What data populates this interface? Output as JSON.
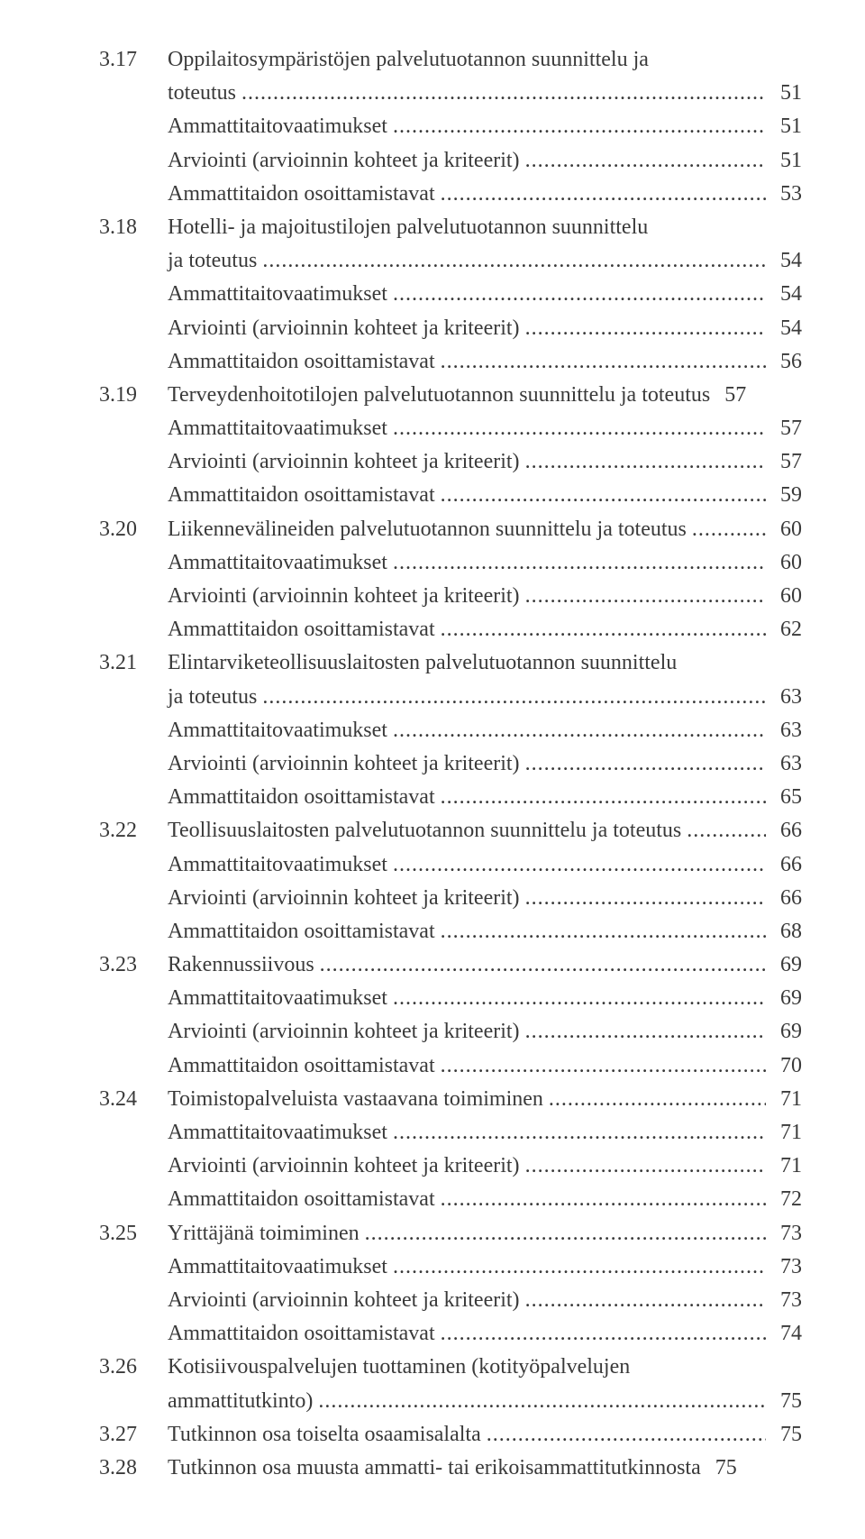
{
  "typography": {
    "font_family": "Georgia, Times New Roman, serif",
    "font_size_pt": 18,
    "text_color": "#3a3a3a",
    "background_color": "#ffffff",
    "line_height": 1.55
  },
  "toc": [
    {
      "num": "3.17",
      "title_lines": [
        "Oppilaitosympäristöjen palvelutuotannon suunnittelu ja",
        "toteutus"
      ],
      "page": 51
    },
    {
      "num": "",
      "indent": true,
      "title_lines": [
        "Ammattitaitovaatimukset"
      ],
      "page": 51
    },
    {
      "num": "",
      "indent": true,
      "title_lines": [
        "Arviointi (arvioinnin kohteet ja kriteerit)"
      ],
      "page": 51
    },
    {
      "num": "",
      "indent": true,
      "title_lines": [
        "Ammattitaidon osoittamistavat"
      ],
      "page": 53
    },
    {
      "num": "3.18",
      "title_lines": [
        "Hotelli- ja majoitustilojen palvelutuotannon suunnittelu",
        "ja toteutus"
      ],
      "page": 54
    },
    {
      "num": "",
      "indent": true,
      "title_lines": [
        "Ammattitaitovaatimukset"
      ],
      "page": 54
    },
    {
      "num": "",
      "indent": true,
      "title_lines": [
        "Arviointi (arvioinnin kohteet ja kriteerit)"
      ],
      "page": 54
    },
    {
      "num": "",
      "indent": true,
      "title_lines": [
        "Ammattitaidon osoittamistavat"
      ],
      "page": 56
    },
    {
      "num": "3.19",
      "title_lines": [
        "Terveydenhoitotilojen palvelutuotannon suunnittelu ja toteutus"
      ],
      "page": 57,
      "tight": true
    },
    {
      "num": "",
      "indent": true,
      "title_lines": [
        "Ammattitaitovaatimukset"
      ],
      "page": 57
    },
    {
      "num": "",
      "indent": true,
      "title_lines": [
        "Arviointi (arvioinnin kohteet ja kriteerit)"
      ],
      "page": 57
    },
    {
      "num": "",
      "indent": true,
      "title_lines": [
        "Ammattitaidon osoittamistavat"
      ],
      "page": 59
    },
    {
      "num": "3.20",
      "title_lines": [
        "Liikennevälineiden palvelutuotannon suunnittelu ja toteutus"
      ],
      "page": 60
    },
    {
      "num": "",
      "indent": true,
      "title_lines": [
        "Ammattitaitovaatimukset"
      ],
      "page": 60
    },
    {
      "num": "",
      "indent": true,
      "title_lines": [
        "Arviointi (arvioinnin kohteet ja kriteerit)"
      ],
      "page": 60
    },
    {
      "num": "",
      "indent": true,
      "title_lines": [
        "Ammattitaidon osoittamistavat"
      ],
      "page": 62
    },
    {
      "num": "3.21",
      "title_lines": [
        "Elintarviketeollisuuslaitosten palvelutuotannon suunnittelu",
        "ja toteutus"
      ],
      "page": 63
    },
    {
      "num": "",
      "indent": true,
      "title_lines": [
        "Ammattitaitovaatimukset"
      ],
      "page": 63
    },
    {
      "num": "",
      "indent": true,
      "title_lines": [
        "Arviointi (arvioinnin kohteet ja kriteerit)"
      ],
      "page": 63
    },
    {
      "num": "",
      "indent": true,
      "title_lines": [
        "Ammattitaidon osoittamistavat"
      ],
      "page": 65
    },
    {
      "num": "3.22",
      "title_lines": [
        "Teollisuuslaitosten palvelutuotannon suunnittelu ja toteutus"
      ],
      "page": 66
    },
    {
      "num": "",
      "indent": true,
      "title_lines": [
        "Ammattitaitovaatimukset"
      ],
      "page": 66
    },
    {
      "num": "",
      "indent": true,
      "title_lines": [
        "Arviointi (arvioinnin kohteet ja kriteerit)"
      ],
      "page": 66
    },
    {
      "num": "",
      "indent": true,
      "title_lines": [
        "Ammattitaidon osoittamistavat"
      ],
      "page": 68
    },
    {
      "num": "3.23",
      "title_lines": [
        "Rakennussiivous"
      ],
      "page": 69
    },
    {
      "num": "",
      "indent": true,
      "title_lines": [
        "Ammattitaitovaatimukset"
      ],
      "page": 69
    },
    {
      "num": "",
      "indent": true,
      "title_lines": [
        "Arviointi (arvioinnin kohteet ja kriteerit)"
      ],
      "page": 69
    },
    {
      "num": "",
      "indent": true,
      "title_lines": [
        "Ammattitaidon osoittamistavat"
      ],
      "page": 70
    },
    {
      "num": "3.24",
      "title_lines": [
        "Toimistopalveluista vastaavana toimiminen"
      ],
      "page": 71
    },
    {
      "num": "",
      "indent": true,
      "title_lines": [
        "Ammattitaitovaatimukset"
      ],
      "page": 71
    },
    {
      "num": "",
      "indent": true,
      "title_lines": [
        "Arviointi (arvioinnin kohteet ja kriteerit)"
      ],
      "page": 71
    },
    {
      "num": "",
      "indent": true,
      "title_lines": [
        "Ammattitaidon osoittamistavat"
      ],
      "page": 72
    },
    {
      "num": "3.25",
      "title_lines": [
        "Yrittäjänä toimiminen"
      ],
      "page": 73
    },
    {
      "num": "",
      "indent": true,
      "title_lines": [
        "Ammattitaitovaatimukset"
      ],
      "page": 73
    },
    {
      "num": "",
      "indent": true,
      "title_lines": [
        "Arviointi (arvioinnin kohteet ja kriteerit)"
      ],
      "page": 73
    },
    {
      "num": "",
      "indent": true,
      "title_lines": [
        "Ammattitaidon osoittamistavat"
      ],
      "page": 74
    },
    {
      "num": "3.26",
      "title_lines": [
        "Kotisiivouspalvelujen tuottaminen (kotityöpalvelujen",
        "ammattitutkinto)"
      ],
      "page": 75
    },
    {
      "num": "3.27",
      "title_lines": [
        "Tutkinnon osa toiselta osaamisalalta"
      ],
      "page": 75
    },
    {
      "num": "3.28",
      "title_lines": [
        "Tutkinnon osa muusta ammatti- tai erikoisammattitutkinnosta"
      ],
      "page": 75,
      "tight": true
    }
  ],
  "dots_string": "...................................................................................................................................................................................."
}
